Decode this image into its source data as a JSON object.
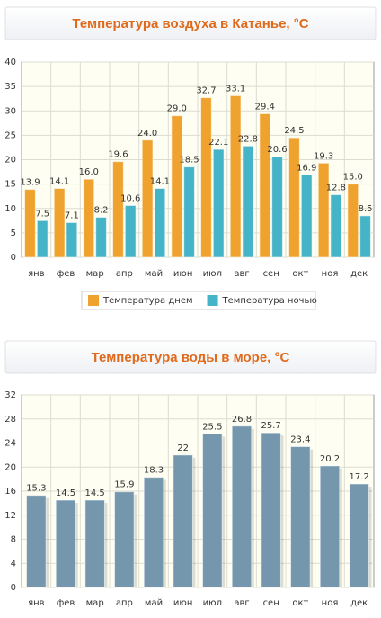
{
  "chart_data": [
    {
      "type": "bar",
      "title": "Температура воздуха в Катанье, °C",
      "categories": [
        "янв",
        "фев",
        "мар",
        "апр",
        "май",
        "июн",
        "июл",
        "авг",
        "сен",
        "окт",
        "ноя",
        "дек"
      ],
      "series": [
        {
          "name": "Температура днем",
          "color": "#f0a22e",
          "values": [
            13.9,
            14.1,
            16.0,
            19.6,
            24.0,
            29.0,
            32.7,
            33.1,
            29.4,
            24.5,
            19.3,
            15.0
          ],
          "value_labels": [
            "13.9",
            "14.1",
            "16.0",
            "19.6",
            "24.0",
            "29.0",
            "32.7",
            "33.1",
            "29.4",
            "24.5",
            "19.3",
            "15.0"
          ]
        },
        {
          "name": "Температура ночью",
          "color": "#45b3c8",
          "values": [
            7.5,
            7.1,
            8.2,
            10.6,
            14.1,
            18.5,
            22.1,
            22.8,
            20.6,
            16.9,
            12.8,
            8.5
          ]
        }
      ],
      "ylim": [
        0,
        40
      ],
      "yticks": [
        0,
        5,
        10,
        15,
        20,
        25,
        30,
        35,
        40
      ],
      "grid": true,
      "legend": "bottom"
    },
    {
      "type": "bar",
      "title": "Температура воды в море, °C",
      "categories": [
        "янв",
        "фев",
        "мар",
        "апр",
        "май",
        "июн",
        "июл",
        "авг",
        "сен",
        "окт",
        "ноя",
        "дек"
      ],
      "series": [
        {
          "color": "#7497ad",
          "values": [
            15.3,
            14.5,
            14.5,
            15.9,
            18.3,
            22,
            25.5,
            26.8,
            25.7,
            23.4,
            20.2,
            17.2
          ]
        }
      ],
      "ylim": [
        0,
        32
      ],
      "yticks": [
        0,
        4,
        8,
        12,
        16,
        20,
        24,
        28,
        32
      ],
      "grid": true
    }
  ]
}
